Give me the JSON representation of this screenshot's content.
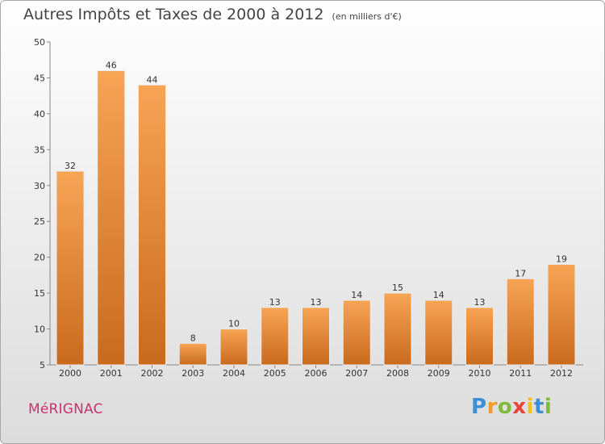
{
  "page": {
    "title": "Autres Impôts et Taxes de 2000 à 2012",
    "subtitle": "(en milliers d'€)",
    "place": "MéRIGNAC",
    "logo": {
      "text": "Proxiti",
      "letters": [
        {
          "char": "P",
          "color": "#3b8fd6"
        },
        {
          "char": "r",
          "color": "#f29a2e"
        },
        {
          "char": "o",
          "color": "#7dbb38"
        },
        {
          "char": "x",
          "color": "#e8423a"
        },
        {
          "char": "i",
          "color": "#f5c01b"
        },
        {
          "char": "t",
          "color": "#3b8fd6"
        },
        {
          "char": "i",
          "color": "#7dbb38"
        }
      ]
    }
  },
  "chart_data": {
    "type": "bar",
    "title": "Autres Impôts et Taxes de 2000 à 2012",
    "subtitle": "(en milliers d'€)",
    "categories": [
      "2000",
      "2001",
      "2002",
      "2003",
      "2004",
      "2005",
      "2006",
      "2007",
      "2008",
      "2009",
      "2010",
      "2011",
      "2012"
    ],
    "values": [
      32,
      46,
      44,
      8,
      10,
      13,
      13,
      14,
      15,
      14,
      13,
      17,
      19
    ],
    "data_labels": [
      "32",
      "46",
      "44",
      "8",
      "10",
      "13",
      "13",
      "14",
      "15",
      "14",
      "13",
      "17",
      "19"
    ],
    "ylim": [
      5,
      50
    ],
    "yticks": [
      5,
      10,
      15,
      20,
      25,
      30,
      35,
      40,
      45,
      50
    ],
    "grid": false,
    "legend": "none",
    "bar_color": "#f0913a",
    "bar_color_light": "#f7a455",
    "bar_color_dark": "#c96a1c"
  }
}
